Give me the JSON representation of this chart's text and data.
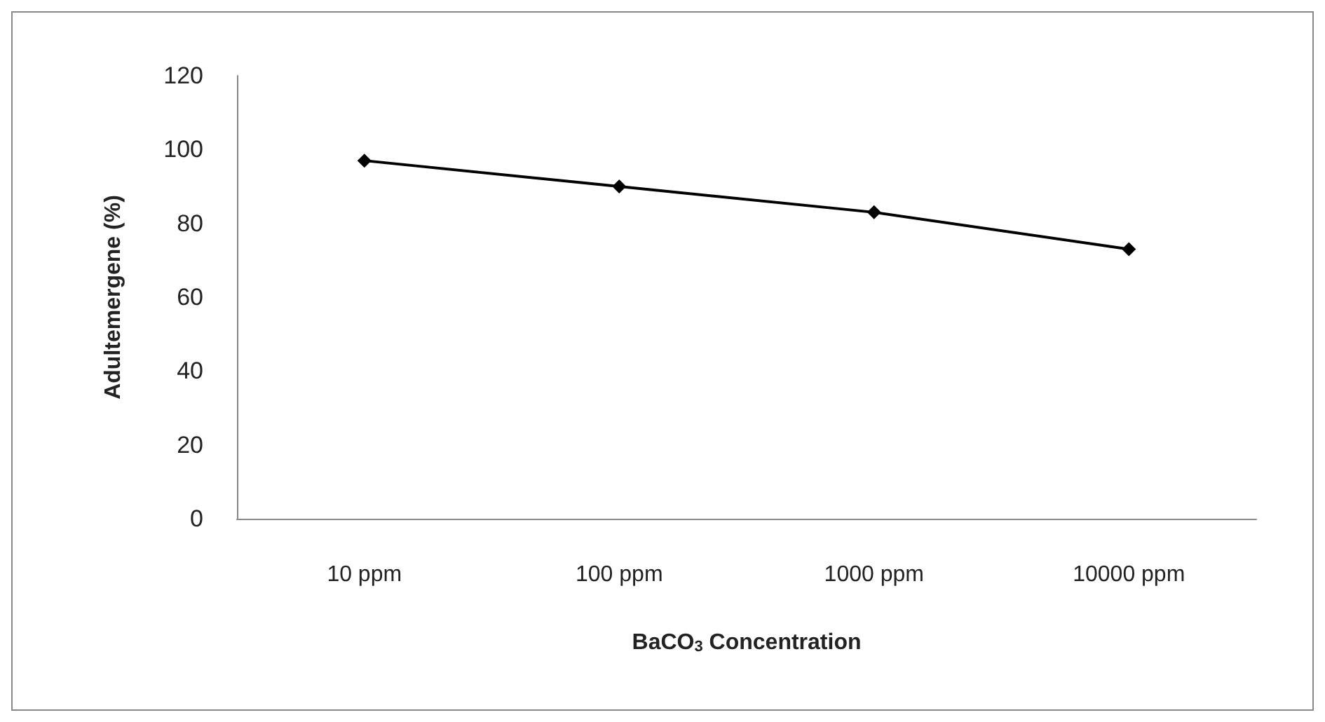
{
  "chart_data": {
    "type": "line",
    "categories": [
      "10 ppm",
      "100 ppm",
      "1000 ppm",
      "10000 ppm"
    ],
    "series": [
      {
        "color": "#000000",
        "values": [
          97,
          90,
          83,
          73
        ]
      }
    ],
    "xlabel": "BaCO$_{3}$ Concentration",
    "ylabel": "Adultemergene (%)",
    "ylim": [
      0,
      120
    ],
    "yticks": [
      0,
      20,
      40,
      60,
      80,
      100,
      120
    ],
    "grid": false,
    "marker": "diamond",
    "line_style": "solid"
  }
}
